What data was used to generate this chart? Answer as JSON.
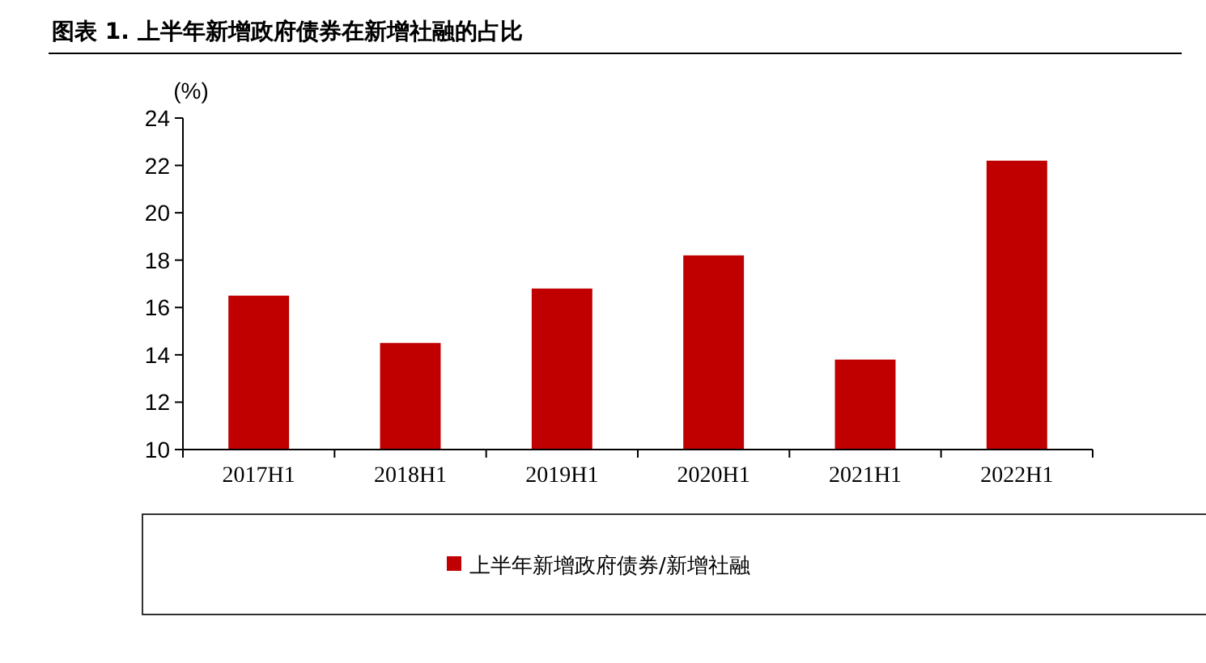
{
  "chart_data": {
    "type": "bar",
    "title": "图表 1. 上半年新增政府债券在新增社融的占比",
    "ylabel": "(%)",
    "categories": [
      "2017H1",
      "2018H1",
      "2019H1",
      "2020H1",
      "2021H1",
      "2022H1"
    ],
    "series": [
      {
        "name": "上半年新增政府债券/新增社融",
        "color": "#c00000",
        "values": [
          16.5,
          14.5,
          16.8,
          18.2,
          13.8,
          22.2
        ]
      }
    ],
    "ylim": [
      10,
      24
    ],
    "yticks": [
      10,
      12,
      14,
      16,
      18,
      20,
      22,
      24
    ],
    "grid": false,
    "legend": "bottom"
  }
}
